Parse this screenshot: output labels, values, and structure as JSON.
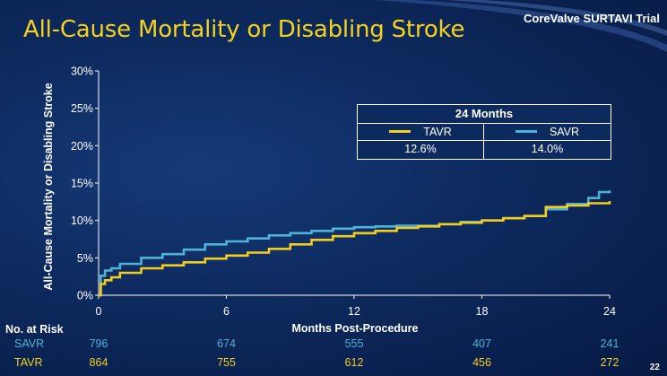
{
  "slide": {
    "title": "All-Cause Mortality or Disabling Stroke",
    "brand": "CoreValve SURTAVI Trial",
    "slide_number": "22"
  },
  "colors": {
    "background": "#0d2a5e",
    "title": "#f4d21e",
    "tavr": "#f2cd1d",
    "savr": "#4fb3d9",
    "text": "#ffffff"
  },
  "legend": {
    "header": "24 Months",
    "tavr_label": "TAVR",
    "savr_label": "SAVR",
    "tavr_value": "12.6%",
    "savr_value": "14.0%"
  },
  "risk_table": {
    "heading": "No. at Risk",
    "rows": [
      {
        "label": "SAVR",
        "color": "#4fb3d9",
        "values": [
          "796",
          "674",
          "555",
          "407",
          "241"
        ]
      },
      {
        "label": "TAVR",
        "color": "#f2cd1d",
        "values": [
          "864",
          "755",
          "612",
          "456",
          "272"
        ]
      }
    ]
  },
  "chart_data": {
    "type": "line",
    "title": "All-Cause Mortality or Disabling Stroke",
    "xlabel": "Months Post-Procedure",
    "ylabel": "All-Cause Mortality or Disabling Stroke",
    "xlim": [
      0,
      24
    ],
    "ylim": [
      0,
      30
    ],
    "xticks": [
      0,
      6,
      12,
      18,
      24
    ],
    "yticks": [
      0,
      5,
      10,
      15,
      20,
      25,
      30
    ],
    "ytick_labels": [
      "0%",
      "5%",
      "10%",
      "15%",
      "20%",
      "25%",
      "30%"
    ],
    "grid": false,
    "legend_position": "top-right",
    "series": [
      {
        "name": "TAVR",
        "color": "#f2cd1d",
        "x": [
          0,
          0.1,
          0.3,
          0.6,
          1.0,
          2.0,
          3.0,
          4.0,
          5.0,
          6.0,
          7.0,
          8.0,
          9.0,
          10.0,
          11.0,
          12.0,
          13.0,
          14.0,
          15.0,
          16.0,
          17.0,
          18.0,
          19.0,
          20.0,
          21.0,
          22.0,
          23.0,
          24.0
        ],
        "y": [
          0,
          1.5,
          2.0,
          2.4,
          3.0,
          3.6,
          4.0,
          4.4,
          4.9,
          5.3,
          5.7,
          6.2,
          6.8,
          7.4,
          7.9,
          8.3,
          8.6,
          9.0,
          9.2,
          9.5,
          9.7,
          10.0,
          10.3,
          10.6,
          11.8,
          12.0,
          12.3,
          12.6
        ]
      },
      {
        "name": "SAVR",
        "color": "#4fb3d9",
        "x": [
          0,
          0.1,
          0.3,
          0.6,
          1.0,
          2.0,
          3.0,
          4.0,
          5.0,
          6.0,
          7.0,
          8.0,
          9.0,
          10.0,
          11.0,
          12.0,
          13.0,
          14.0,
          15.0,
          16.0,
          17.0,
          18.0,
          19.0,
          20.0,
          21.0,
          22.0,
          23.0,
          23.5,
          24.0
        ],
        "y": [
          0,
          2.6,
          3.3,
          3.6,
          4.2,
          5.0,
          5.5,
          6.1,
          6.8,
          7.2,
          7.6,
          8.0,
          8.3,
          8.6,
          8.9,
          9.1,
          9.2,
          9.3,
          9.3,
          9.5,
          9.8,
          10.0,
          10.3,
          10.6,
          11.5,
          12.2,
          13.0,
          13.8,
          14.0
        ]
      }
    ]
  }
}
